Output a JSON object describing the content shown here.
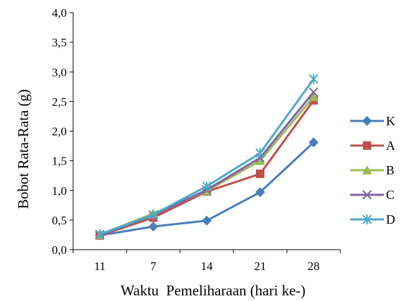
{
  "chart_data": {
    "type": "line",
    "title": "",
    "xlabel": "Waktu  Pemeliharaan (hari ke-)",
    "ylabel": "Bobot Rata-Rata (g)",
    "categories": [
      "11",
      "7",
      "14",
      "21",
      "28"
    ],
    "ylim": [
      0,
      4
    ],
    "yticks": [
      "0,0",
      "0,5",
      "1,0",
      "1,5",
      "2,0",
      "2,5",
      "3,0",
      "3,5",
      "4,0"
    ],
    "grid": false,
    "legend_position": "right",
    "series": [
      {
        "name": "K",
        "color": "#4a7ebb",
        "marker": "diamond",
        "values": [
          0.24,
          0.39,
          0.49,
          0.97,
          1.81
        ]
      },
      {
        "name": "A",
        "color": "#c0504d",
        "marker": "square",
        "values": [
          0.24,
          0.54,
          0.98,
          1.28,
          2.52
        ]
      },
      {
        "name": "B",
        "color": "#9bbb59",
        "marker": "triangle",
        "values": [
          0.25,
          0.61,
          0.99,
          1.5,
          2.58
        ]
      },
      {
        "name": "C",
        "color": "#8064a2",
        "marker": "x",
        "values": [
          0.25,
          0.58,
          1.01,
          1.55,
          2.66
        ]
      },
      {
        "name": "D",
        "color": "#4bacc6",
        "marker": "star",
        "values": [
          0.26,
          0.59,
          1.07,
          1.63,
          2.88
        ]
      }
    ]
  }
}
